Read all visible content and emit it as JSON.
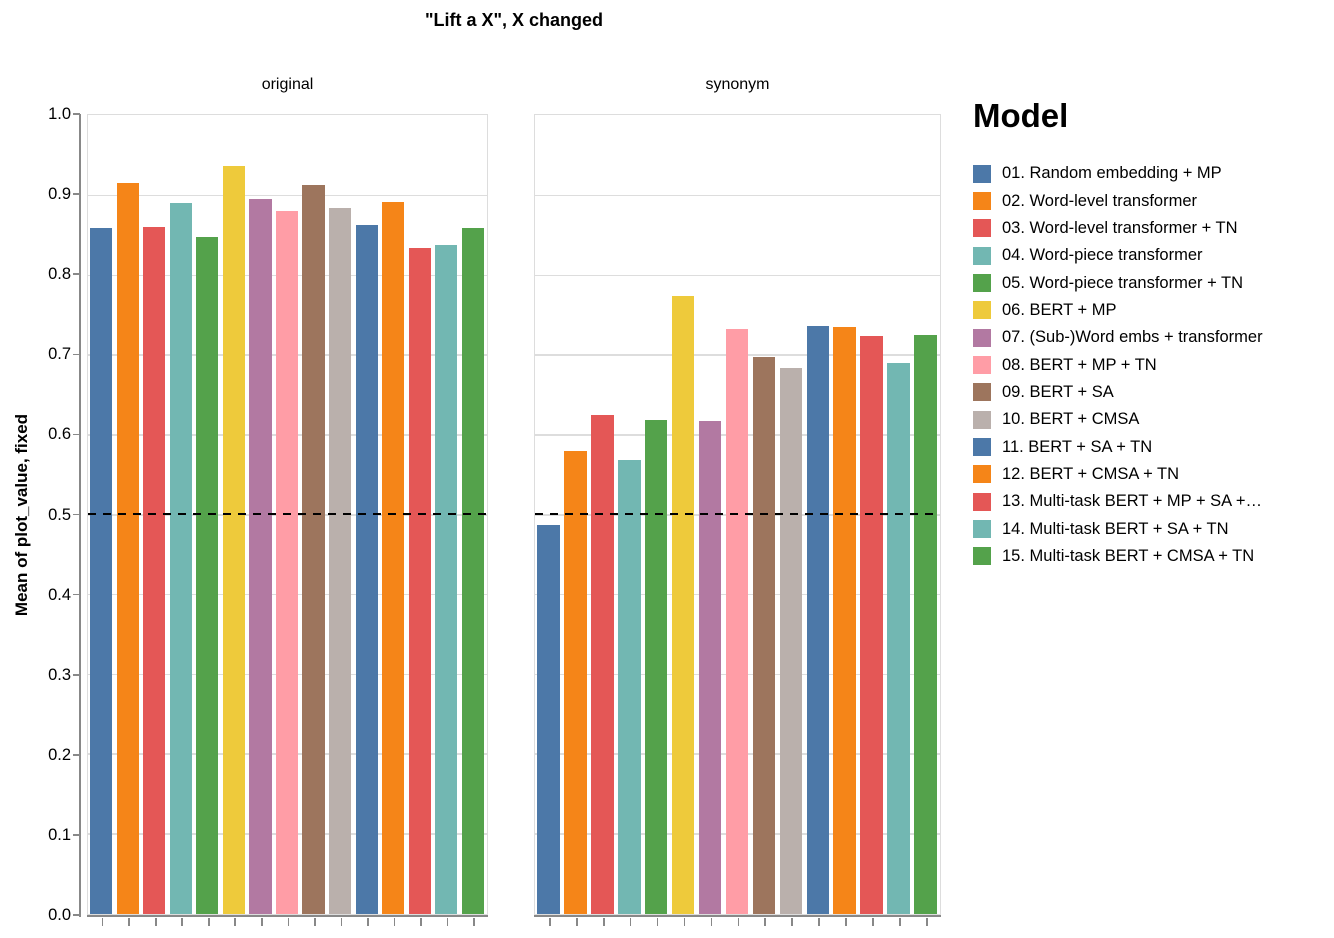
{
  "title": "\"Lift a X\", X changed",
  "chart_data": {
    "type": "bar",
    "facets": [
      {
        "label": "original",
        "values": [
          0.86,
          0.916,
          0.861,
          0.891,
          0.848,
          0.937,
          0.896,
          0.881,
          0.913,
          0.885,
          0.864,
          0.892,
          0.835,
          0.838,
          0.86
        ]
      },
      {
        "label": "synonym",
        "values": [
          0.488,
          0.58,
          0.625,
          0.569,
          0.619,
          0.774,
          0.618,
          0.733,
          0.698,
          0.684,
          0.737,
          0.736,
          0.724,
          0.69,
          0.726
        ]
      }
    ],
    "series_labels": [
      "01. Random embedding + MP",
      "02. Word-level transformer",
      "03. Word-level transformer + TN",
      "04. Word-piece transformer",
      "05. Word-piece transformer + TN",
      "06. BERT + MP",
      "07. (Sub-)Word embs + transformer",
      "08. BERT + MP + TN",
      "09. BERT + SA",
      "10. BERT + CMSA",
      "11. BERT + SA + TN",
      "12. BERT + CMSA + TN",
      "13. Multi-task BERT + MP + SA +…",
      "14. Multi-task BERT + SA + TN",
      "15. Multi-task BERT + CMSA + TN"
    ],
    "palette": [
      "#4c78a8",
      "#f58518",
      "#e45756",
      "#72b7b2",
      "#54a24b",
      "#eeca3b",
      "#b279a2",
      "#ff9da6",
      "#9d755d",
      "#bab0ac"
    ],
    "title": "\"Lift a X\", X changed",
    "ylabel": "Mean of plot_value, fixed",
    "legend_title": "Model",
    "ylim": [
      0.0,
      1.0
    ],
    "yticks": [
      {
        "v": 0.0,
        "label": "0.0"
      },
      {
        "v": 0.1,
        "label": "0.1"
      },
      {
        "v": 0.2,
        "label": "0.2"
      },
      {
        "v": 0.3,
        "label": "0.3"
      },
      {
        "v": 0.4,
        "label": "0.4"
      },
      {
        "v": 0.5,
        "label": "0.5"
      },
      {
        "v": 0.6,
        "label": "0.6"
      },
      {
        "v": 0.7,
        "label": "0.7"
      },
      {
        "v": 0.8,
        "label": "0.8"
      },
      {
        "v": 0.9,
        "label": "0.9"
      },
      {
        "v": 1.0,
        "label": "1.0"
      }
    ],
    "reference_line": 0.5,
    "grid": true,
    "legend_position": "right",
    "colors": {
      "gridline": "#dddddd",
      "axis": "#888888",
      "reference_line": "#000000",
      "background": "#ffffff"
    }
  }
}
